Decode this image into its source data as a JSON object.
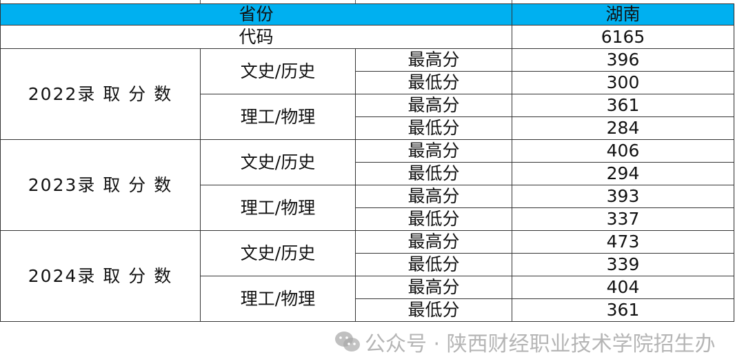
{
  "header": {
    "label": "省份",
    "value": "湖南"
  },
  "code": {
    "label": "代码",
    "value": "6165"
  },
  "years": [
    {
      "label": "2022录 取 分 数",
      "groups": [
        {
          "subject": "文史/历史",
          "rows": [
            {
              "label": "最高分",
              "value": "396"
            },
            {
              "label": "最低分",
              "value": "300"
            }
          ]
        },
        {
          "subject": "理工/物理",
          "rows": [
            {
              "label": "最高分",
              "value": "361"
            },
            {
              "label": "最低分",
              "value": "284"
            }
          ]
        }
      ]
    },
    {
      "label": "2023录 取 分 数",
      "groups": [
        {
          "subject": "文史/历史",
          "rows": [
            {
              "label": "最高分",
              "value": "406"
            },
            {
              "label": "最低分",
              "value": "294"
            }
          ]
        },
        {
          "subject": "理工/物理",
          "rows": [
            {
              "label": "最高分",
              "value": "393"
            },
            {
              "label": "最低分",
              "value": "337"
            }
          ]
        }
      ]
    },
    {
      "label": "2024录 取 分 数",
      "groups": [
        {
          "subject": "文史/历史",
          "rows": [
            {
              "label": "最高分",
              "value": "473"
            },
            {
              "label": "最低分",
              "value": "339"
            }
          ]
        },
        {
          "subject": "理工/物理",
          "rows": [
            {
              "label": "最高分",
              "value": "404"
            },
            {
              "label": "最低分",
              "value": "361"
            }
          ]
        }
      ]
    }
  ],
  "watermark": {
    "text": "公众号 · 陕西财经职业技术学院招生办",
    "icon": "wechat-icon"
  },
  "colors": {
    "header_bg": "#00b0f0"
  }
}
